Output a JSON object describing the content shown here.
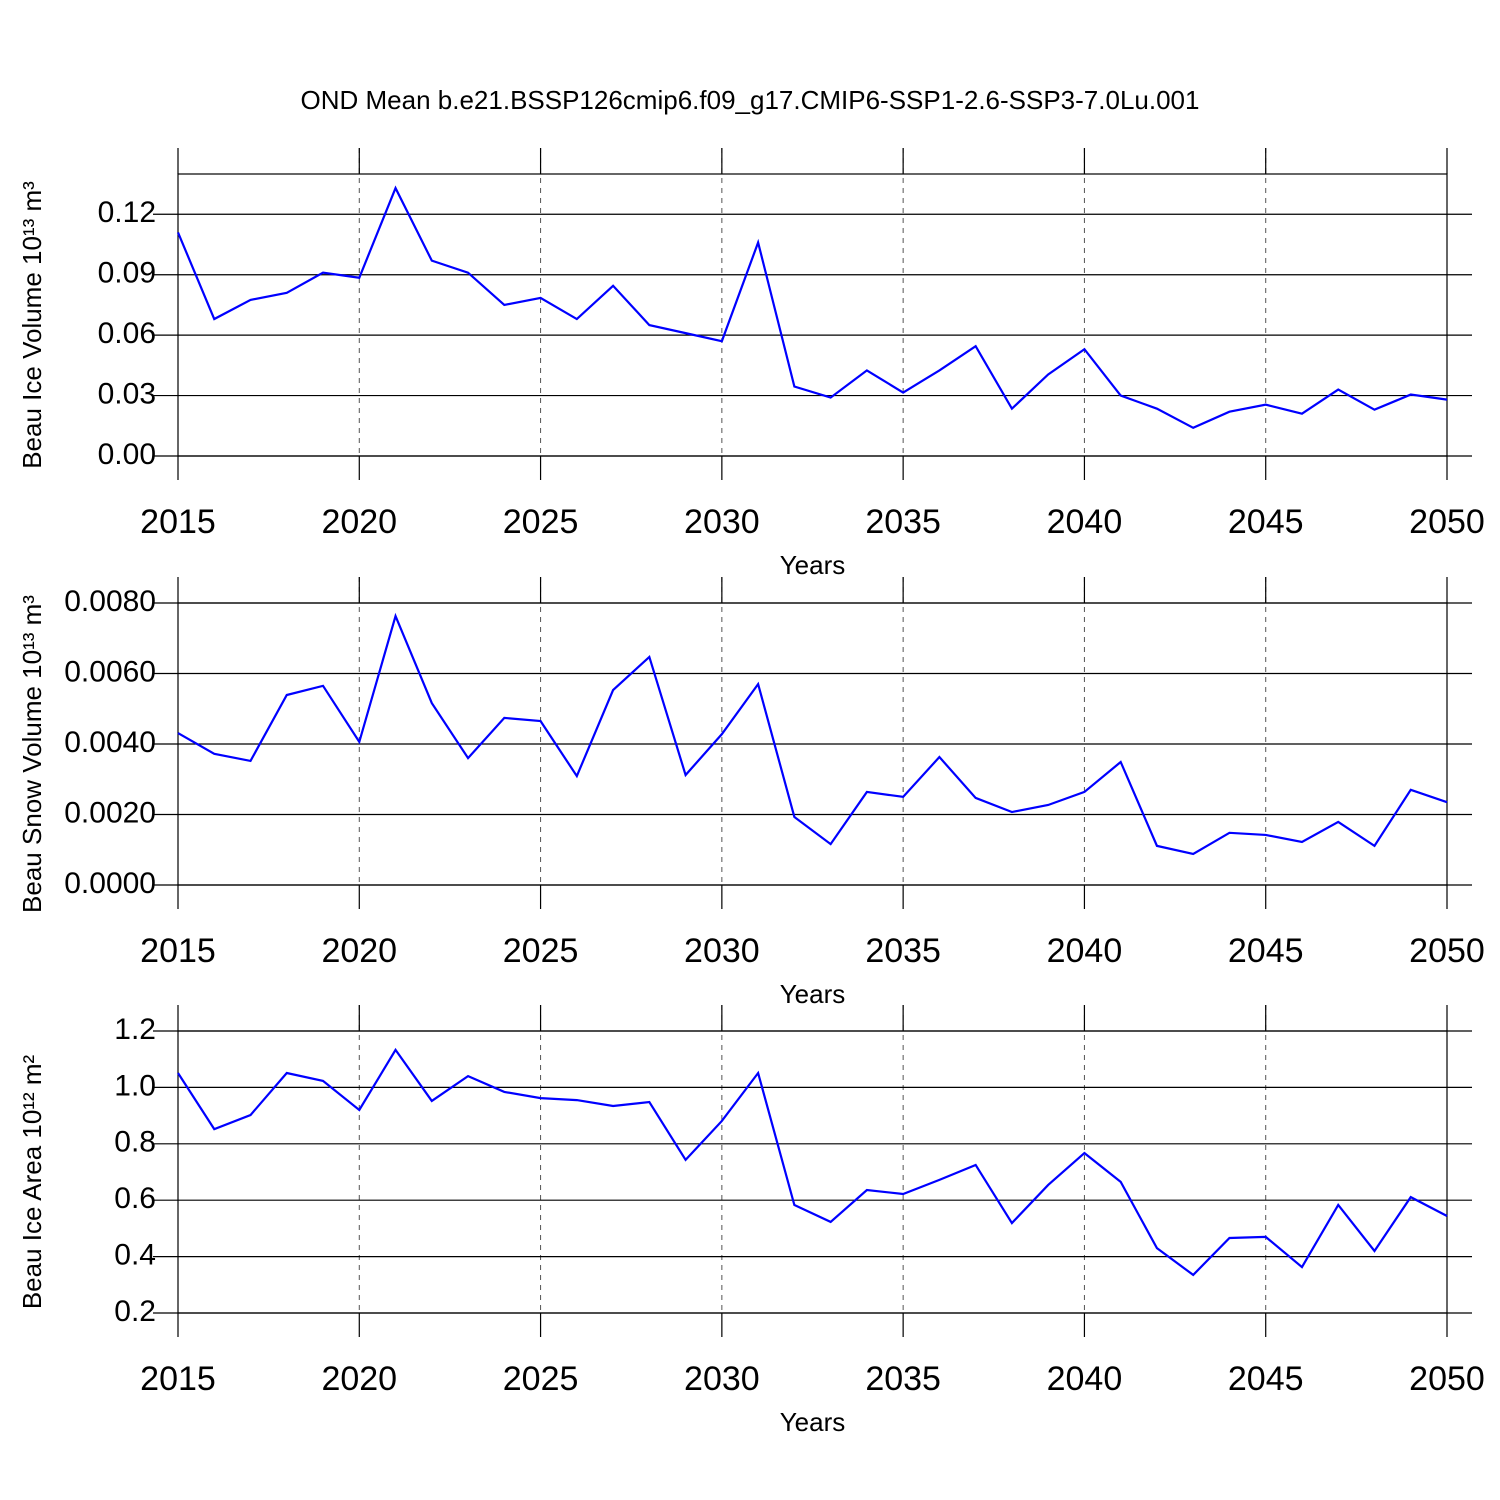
{
  "chart_data": [
    {
      "type": "line",
      "title": "OND Mean b.e21.BSSP126cmip6.f09_g17.CMIP6-SSP1-2.6-SSP3-7.0Lu.001",
      "x_label": "Years",
      "y_label": "Beau Ice Volume 10¹³ m³",
      "x": [
        2015,
        2016,
        2017,
        2018,
        2019,
        2020,
        2021,
        2022,
        2023,
        2024,
        2025,
        2026,
        2027,
        2028,
        2029,
        2030,
        2031,
        2032,
        2033,
        2034,
        2035,
        2036,
        2037,
        2038,
        2039,
        2040,
        2041,
        2042,
        2043,
        2044,
        2045,
        2046,
        2047,
        2048,
        2049,
        2050
      ],
      "series": [
        {
          "color": "#0000ff",
          "values": [
            0.111,
            0.068,
            0.0775,
            0.081,
            0.091,
            0.0885,
            0.133,
            0.097,
            0.091,
            0.075,
            0.0785,
            0.068,
            0.0845,
            0.065,
            0.061,
            0.057,
            0.106,
            0.0345,
            0.029,
            0.0425,
            0.0315,
            0.0425,
            0.0545,
            0.0235,
            0.0405,
            0.053,
            0.03,
            0.0235,
            0.014,
            0.022,
            0.0255,
            0.021,
            0.033,
            0.023,
            0.0305,
            0.028
          ]
        }
      ],
      "xlim": [
        2015,
        2050
      ],
      "xticks": [
        2015,
        2020,
        2025,
        2030,
        2035,
        2040,
        2045,
        2050
      ],
      "ylim": [
        0,
        0.14
      ],
      "yticks": [
        {
          "value": 0,
          "label": "0.00"
        },
        0.03,
        0.06,
        0.09,
        0.12
      ],
      "grid": true
    },
    {
      "type": "line",
      "x_label": "Years",
      "y_label": "Beau Snow Volume 10¹³ m³",
      "x": [
        2015,
        2016,
        2017,
        2018,
        2019,
        2020,
        2021,
        2022,
        2023,
        2024,
        2025,
        2026,
        2027,
        2028,
        2029,
        2030,
        2031,
        2032,
        2033,
        2034,
        2035,
        2036,
        2037,
        2038,
        2039,
        2040,
        2041,
        2042,
        2043,
        2044,
        2045,
        2046,
        2047,
        2048,
        2049,
        2050
      ],
      "series": [
        {
          "color": "#0000ff",
          "values": [
            0.00431,
            0.00372,
            0.00352,
            0.00539,
            0.00565,
            0.00406,
            0.00763,
            0.00516,
            0.0036,
            0.00474,
            0.00465,
            0.00309,
            0.00553,
            0.00647,
            0.00312,
            0.00428,
            0.0057,
            0.00193,
            0.00116,
            0.00264,
            0.0025,
            0.00363,
            0.00247,
            0.00207,
            0.00227,
            0.00264,
            0.00349,
            0.00111,
            0.00088,
            0.00148,
            0.00142,
            0.00122,
            0.00179,
            0.00111,
            0.0027,
            0.00235
          ]
        }
      ],
      "xlim": [
        2015,
        2050
      ],
      "xticks": [
        2015,
        2020,
        2025,
        2030,
        2035,
        2040,
        2045,
        2050
      ],
      "ylim": [
        0,
        0.008
      ],
      "yticks": [
        {
          "value": 0,
          "label": "0.0000"
        },
        {
          "value": 0.002,
          "label": "0.0020"
        },
        {
          "value": 0.004,
          "label": "0.0040"
        },
        {
          "value": 0.006,
          "label": "0.0060"
        },
        {
          "value": 0.008,
          "label": "0.0080"
        }
      ],
      "grid": true
    },
    {
      "type": "line",
      "x_label": "Years",
      "y_label": "Beau Ice Area 10¹² m²",
      "x": [
        2015,
        2016,
        2017,
        2018,
        2019,
        2020,
        2021,
        2022,
        2023,
        2024,
        2025,
        2026,
        2027,
        2028,
        2029,
        2030,
        2031,
        2032,
        2033,
        2034,
        2035,
        2036,
        2037,
        2038,
        2039,
        2040,
        2041,
        2042,
        2043,
        2044,
        2045,
        2046,
        2047,
        2048,
        2049,
        2050
      ],
      "series": [
        {
          "color": "#0000ff",
          "values": [
            1.051,
            0.852,
            0.902,
            1.051,
            1.023,
            0.92,
            1.133,
            0.952,
            1.04,
            0.984,
            0.962,
            0.955,
            0.934,
            0.948,
            0.743,
            0.881,
            1.051,
            0.583,
            0.523,
            0.636,
            0.622,
            0.672,
            0.725,
            0.519,
            0.654,
            0.767,
            0.665,
            0.43,
            0.335,
            0.466,
            0.47,
            0.363,
            0.583,
            0.42,
            0.611,
            0.544
          ]
        }
      ],
      "xlim": [
        2015,
        2050
      ],
      "xticks": [
        2015,
        2020,
        2025,
        2030,
        2035,
        2040,
        2045,
        2050
      ],
      "ylim": [
        0.2,
        1.2
      ],
      "yticks": [
        0.2,
        0.4,
        0.6,
        0.8,
        {
          "value": 1.0,
          "label": "1.0"
        },
        1.2
      ],
      "grid": true
    }
  ]
}
